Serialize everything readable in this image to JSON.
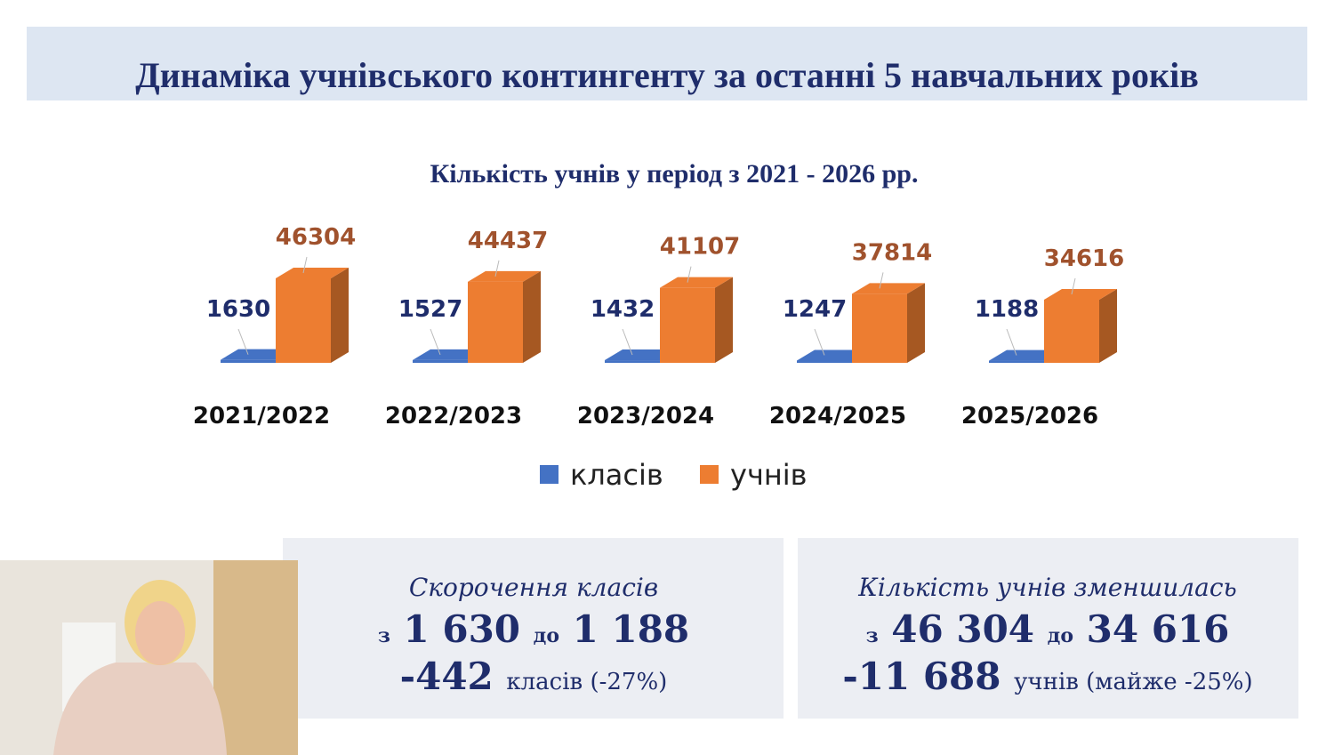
{
  "header": {
    "title": "Динаміка учнівського контингенту за останні 5 навчальних років"
  },
  "chart_data": {
    "type": "bar3d",
    "title": "Кількість учнів у період з 2021 - 2026 рр.",
    "categories": [
      "2021/2022",
      "2022/2023",
      "2023/2024",
      "2024/2025",
      "2025/2026"
    ],
    "series": [
      {
        "name": "класів",
        "color": "#4472c4",
        "label_color": "#1f2d6b",
        "values": [
          1630,
          1527,
          1432,
          1247,
          1188
        ]
      },
      {
        "name": "учнів",
        "color": "#ed7d31",
        "label_color": "#a0522d",
        "values": [
          46304,
          44437,
          41107,
          37814,
          34616
        ]
      }
    ]
  },
  "summary_boxes": [
    {
      "heading": "Скорочення класів",
      "from_word": "з",
      "from": "1 630",
      "to_word": "до",
      "to": "1 188",
      "change": "-442",
      "change_note": "класів (-27%)"
    },
    {
      "heading": "Кількість учнів зменшилась",
      "from_word": "з",
      "from": "46 304",
      "to_word": "до",
      "to": "34 616",
      "change": "-11 688",
      "change_note": "учнів (майже -25%)"
    }
  ]
}
